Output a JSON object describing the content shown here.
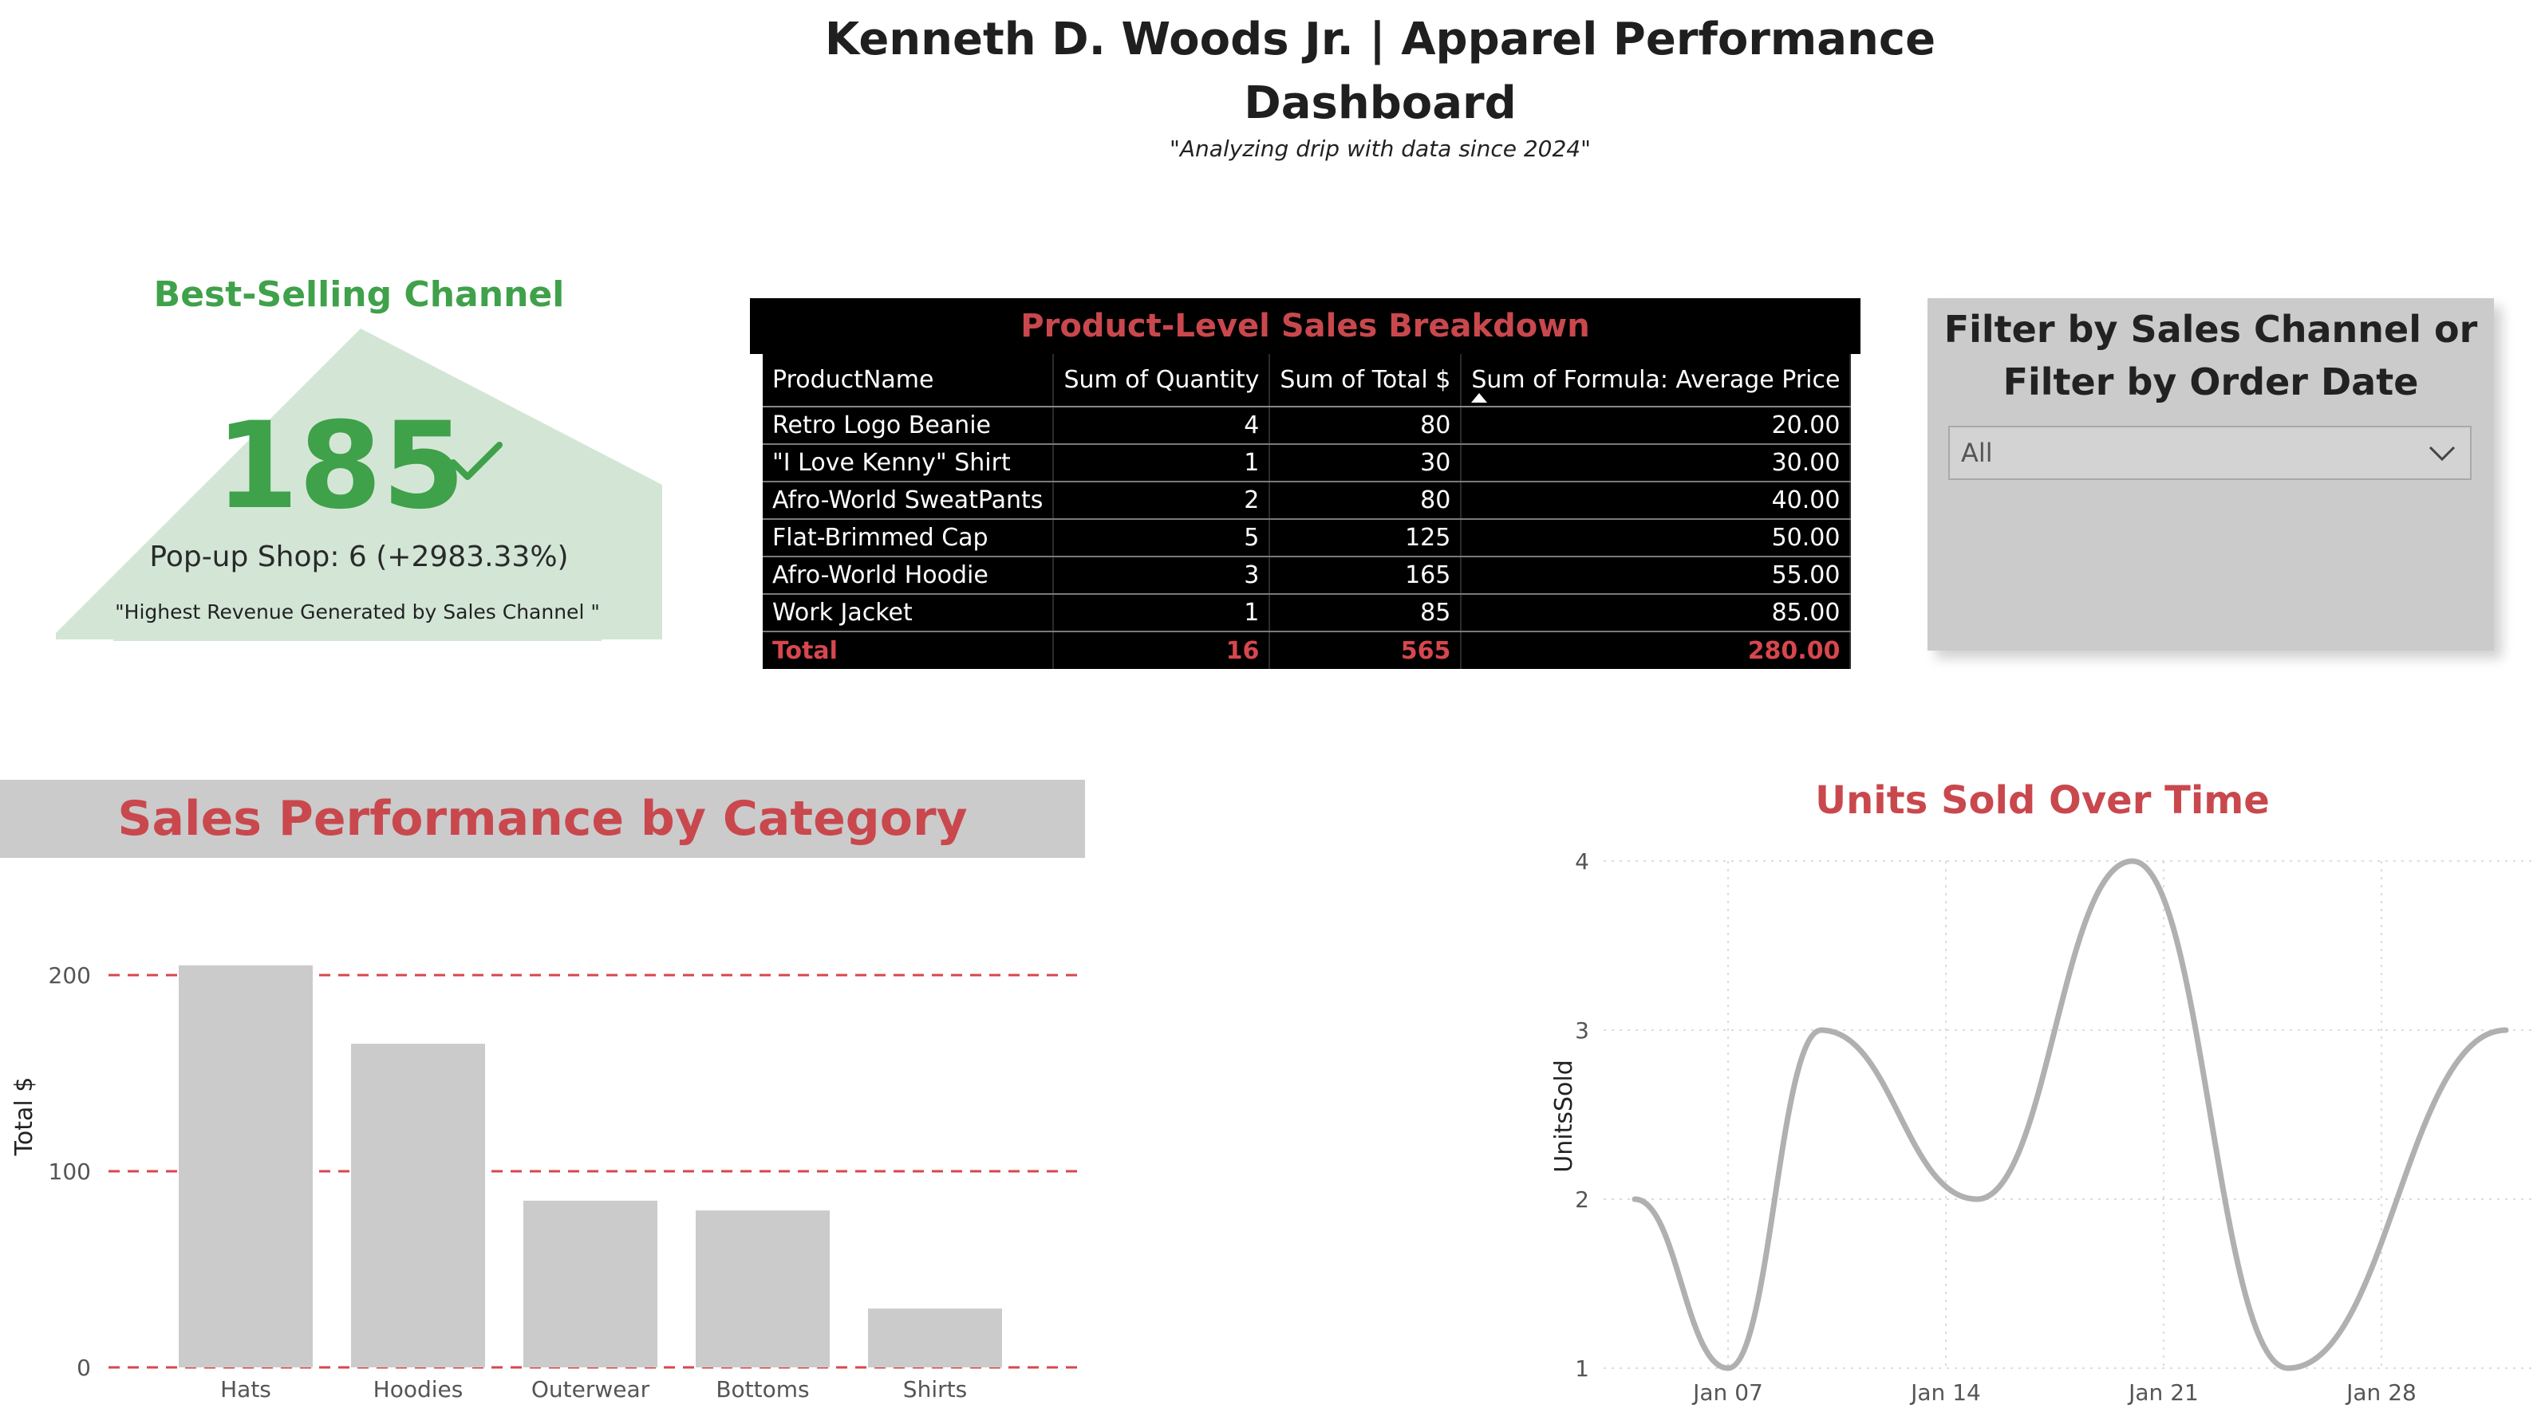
{
  "header": {
    "title_line1": "Kenneth D. Woods Jr. | Apparel Performance",
    "title_line2": "Dashboard",
    "subtitle": "\"Analyzing drip with data since 2024\""
  },
  "kpi": {
    "title": "Best-Selling Channel",
    "value": "185",
    "comparison": "Pop-up Shop: 6 (+2983.33%)",
    "note": "\"Highest Revenue Generated by Sales Channel \"",
    "color": "#3fa14a"
  },
  "table": {
    "title": "Product-Level Sales Breakdown",
    "columns": [
      "ProductName",
      "Sum of Quantity",
      "Sum of Total $",
      "Sum of Formula: Average Price"
    ],
    "rows": [
      [
        "Retro Logo Beanie",
        "4",
        "80",
        "20.00"
      ],
      [
        "\"I Love Kenny\" Shirt",
        "1",
        "30",
        "30.00"
      ],
      [
        "Afro-World SweatPants",
        "2",
        "80",
        "40.00"
      ],
      [
        "Flat-Brimmed Cap",
        "5",
        "125",
        "50.00"
      ],
      [
        "Afro-World Hoodie",
        "3",
        "165",
        "55.00"
      ],
      [
        "Work Jacket",
        "1",
        "85",
        "85.00"
      ]
    ],
    "total": [
      "Total",
      "16",
      "565",
      "280.00"
    ]
  },
  "filter": {
    "title": "Filter by Sales Channel or Filter by Order Date",
    "selected": "All"
  },
  "chart_data": [
    {
      "type": "bar",
      "title": "Sales Performance by Category",
      "categories": [
        "Hats",
        "Hoodies",
        "Outerwear",
        "Bottoms",
        "Shirts"
      ],
      "values": [
        205,
        165,
        85,
        80,
        30
      ],
      "xlabel": "",
      "ylabel": "Total $",
      "ylim": [
        0,
        200
      ],
      "yticks": [
        0,
        100,
        200
      ],
      "grid": "dashed",
      "bar_color": "#cbcbcb",
      "grid_color": "#d7474d"
    },
    {
      "type": "line",
      "title": "Units Sold Over Time",
      "x": [
        "2024-01-04",
        "2024-01-07",
        "2024-01-10",
        "2024-01-15",
        "2024-01-20",
        "2024-01-25",
        "2024-02-01"
      ],
      "values": [
        2,
        1,
        3,
        2,
        4,
        1,
        3
      ],
      "xticks": [
        "Jan 07",
        "Jan 14",
        "Jan 21",
        "Jan 28"
      ],
      "xlabel": "",
      "ylabel": "UnitsSold",
      "ylim": [
        1,
        4
      ],
      "yticks": [
        1,
        2,
        3,
        4
      ],
      "grid": "dotted",
      "line_color": "#b0b0b0"
    }
  ]
}
